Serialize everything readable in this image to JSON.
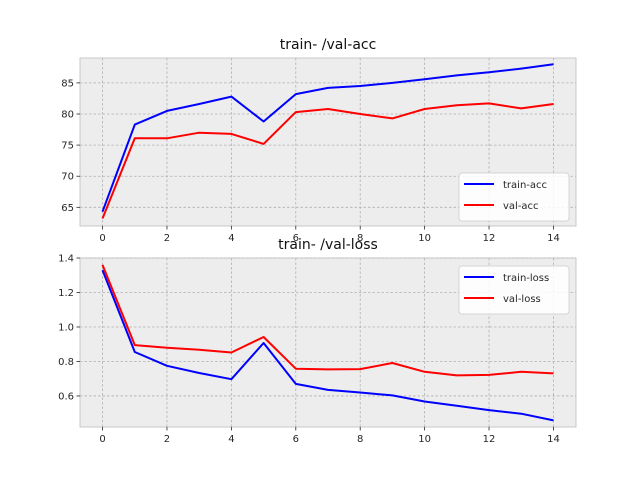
{
  "chart_data": [
    {
      "type": "line",
      "title": "train- /val-acc",
      "xlabel": "",
      "ylabel": "",
      "x": [
        0,
        1,
        2,
        3,
        4,
        5,
        6,
        7,
        8,
        9,
        10,
        11,
        12,
        13,
        14
      ],
      "xlim": [
        -0.7,
        14.7
      ],
      "ylim": [
        62,
        89
      ],
      "xticks": [
        0,
        2,
        4,
        6,
        8,
        10,
        12,
        14
      ],
      "yticks": [
        65,
        70,
        75,
        80,
        85
      ],
      "grid": true,
      "legend_position": "lower-right",
      "series": [
        {
          "name": "train-acc",
          "color": "#0000ff",
          "values": [
            64.3,
            78.3,
            80.5,
            81.6,
            82.8,
            78.8,
            83.2,
            84.2,
            84.5,
            85.0,
            85.6,
            86.2,
            86.7,
            87.3,
            88.0
          ]
        },
        {
          "name": "val-acc",
          "color": "#ff0000",
          "values": [
            63.2,
            76.1,
            76.1,
            77.0,
            76.8,
            75.2,
            80.3,
            80.8,
            80.0,
            79.3,
            80.8,
            81.4,
            81.7,
            80.9,
            81.6
          ]
        }
      ]
    },
    {
      "type": "line",
      "title": "train- /val-loss",
      "xlabel": "",
      "ylabel": "",
      "x": [
        0,
        1,
        2,
        3,
        4,
        5,
        6,
        7,
        8,
        9,
        10,
        11,
        12,
        13,
        14
      ],
      "xlim": [
        -0.7,
        14.7
      ],
      "ylim": [
        0.42,
        1.4
      ],
      "xticks": [
        0,
        2,
        4,
        6,
        8,
        10,
        12,
        14
      ],
      "yticks": [
        0.6,
        0.8,
        1.0,
        1.2,
        1.4
      ],
      "ytick_labels": [
        "0.6",
        "0.8",
        "1.0",
        "1.2",
        "1.4"
      ],
      "grid": true,
      "legend_position": "upper-right",
      "series": [
        {
          "name": "train-loss",
          "color": "#0000ff",
          "values": [
            1.33,
            0.855,
            0.775,
            0.733,
            0.697,
            0.907,
            0.67,
            0.635,
            0.62,
            0.603,
            0.568,
            0.543,
            0.518,
            0.497,
            0.458
          ]
        },
        {
          "name": "val-loss",
          "color": "#ff0000",
          "values": [
            1.36,
            0.895,
            0.88,
            0.868,
            0.852,
            0.942,
            0.758,
            0.754,
            0.756,
            0.791,
            0.74,
            0.719,
            0.722,
            0.74,
            0.731
          ]
        }
      ]
    }
  ]
}
